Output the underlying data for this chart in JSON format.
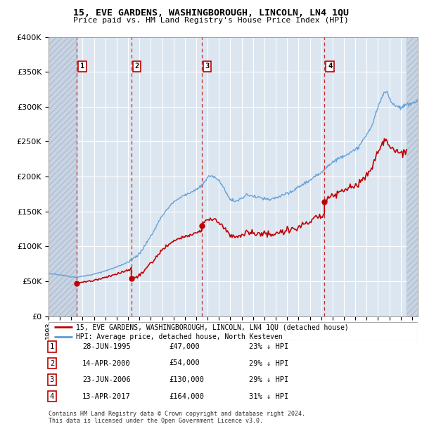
{
  "title1": "15, EVE GARDENS, WASHINGBOROUGH, LINCOLN, LN4 1QU",
  "title2": "Price paid vs. HM Land Registry's House Price Index (HPI)",
  "sales": [
    {
      "label": "1",
      "date": 1995.48,
      "price": 47000
    },
    {
      "label": "2",
      "date": 2000.28,
      "price": 54000
    },
    {
      "label": "3",
      "date": 2006.48,
      "price": 130000
    },
    {
      "label": "4",
      "date": 2017.28,
      "price": 164000
    }
  ],
  "sale_dates_str": [
    "28-JUN-1995",
    "14-APR-2000",
    "23-JUN-2006",
    "13-APR-2017"
  ],
  "sale_prices_str": [
    "£47,000",
    "£54,000",
    "£130,000",
    "£164,000"
  ],
  "sale_discounts": [
    "23% ↓ HPI",
    "29% ↓ HPI",
    "29% ↓ HPI",
    "31% ↓ HPI"
  ],
  "legend_line1": "15, EVE GARDENS, WASHINGBOROUGH, LINCOLN, LN4 1QU (detached house)",
  "legend_line2": "HPI: Average price, detached house, North Kesteven",
  "footer1": "Contains HM Land Registry data © Crown copyright and database right 2024.",
  "footer2": "This data is licensed under the Open Government Licence v3.0.",
  "hpi_color": "#5b9bd5",
  "price_color": "#c00000",
  "label_box_color": "#c00000",
  "bg_color": "#dce6f1",
  "grid_color": "#ffffff",
  "ylim": [
    0,
    400000
  ],
  "xlim_start": 1993.0,
  "xlim_end": 2025.5,
  "hatch_end": 1995.48,
  "hatch_start2": 2024.5
}
